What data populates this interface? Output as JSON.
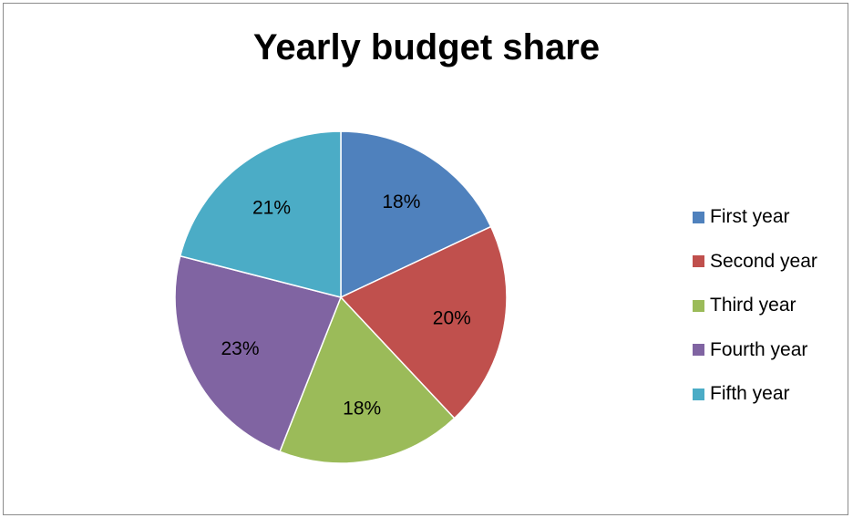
{
  "chart_data": {
    "type": "pie",
    "title": "Yearly budget share",
    "categories": [
      "First year",
      "Second year",
      "Third year",
      "Fourth year",
      "Fifth year"
    ],
    "values": [
      18,
      20,
      18,
      23,
      21
    ],
    "data_labels": [
      "18%",
      "20%",
      "18%",
      "23%",
      "21%"
    ],
    "colors": [
      "#4f81bd",
      "#c0504d",
      "#9bbb59",
      "#8064a2",
      "#4bacc6"
    ],
    "legend_position": "right"
  }
}
